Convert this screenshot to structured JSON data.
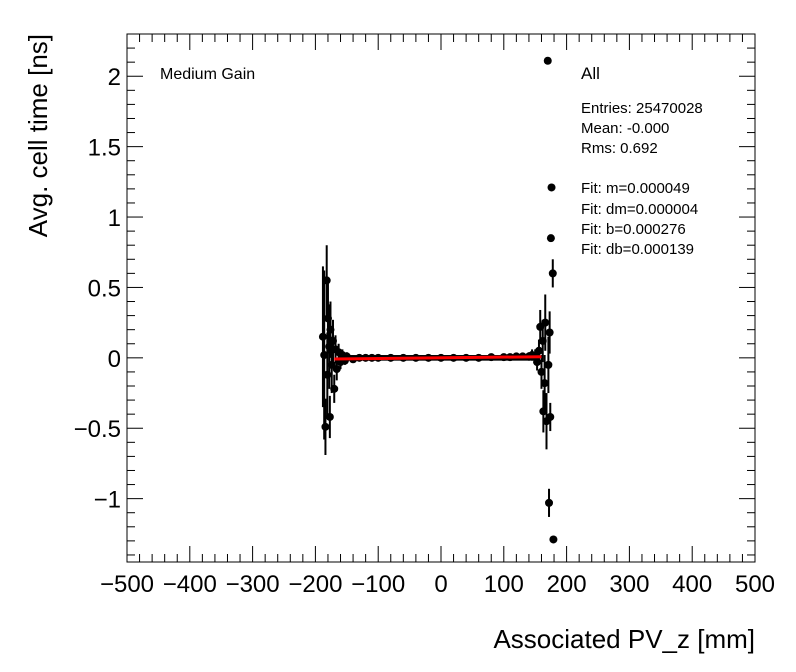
{
  "chart_data": {
    "type": "scatter",
    "xlabel": "Associated PV_z [mm]",
    "ylabel": "Avg. cell time [ns]",
    "xlim": [
      -500,
      500
    ],
    "ylim": [
      -1.45,
      2.3
    ],
    "x_ticks": [
      -500,
      -400,
      -300,
      -200,
      -100,
      0,
      100,
      200,
      300,
      400,
      500
    ],
    "y_ticks": [
      -1,
      -0.5,
      0,
      0.5,
      1,
      1.5,
      2
    ],
    "x_tick_labels": [
      "−500",
      "−400",
      "−300",
      "−200",
      "−100",
      "0",
      "100",
      "200",
      "300",
      "400",
      "500"
    ],
    "y_tick_labels": [
      "−1",
      "−0.5",
      "0",
      "0.5",
      "1",
      "1.5",
      "2"
    ],
    "annotation": "Medium Gain",
    "stats": {
      "title": "All",
      "lines": [
        "Entries: 25470028",
        "Mean: -0.000",
        "Rms: 0.692"
      ],
      "fit_lines": [
        "Fit: m=0.000049",
        "Fit: dm=0.000004",
        "Fit: b=0.000276",
        "Fit: db=0.000139"
      ]
    },
    "fit": {
      "m": 4.9e-05,
      "b": 0.000276,
      "x_range": [
        -170,
        160
      ],
      "color": "#ff0000"
    },
    "points": [
      {
        "x": -188,
        "y": 0.15,
        "err": 0.5
      },
      {
        "x": -186,
        "y": 0.02,
        "err": 0.6
      },
      {
        "x": -184,
        "y": -0.49,
        "err": 0.2
      },
      {
        "x": -182,
        "y": 0.55,
        "err": 0.25
      },
      {
        "x": -181,
        "y": -0.12,
        "err": 0.3
      },
      {
        "x": -180,
        "y": 0.28,
        "err": 0.25
      },
      {
        "x": -178,
        "y": 0.08,
        "err": 0.3
      },
      {
        "x": -177,
        "y": -0.42,
        "err": 0.15
      },
      {
        "x": -176,
        "y": 0.2,
        "err": 0.2
      },
      {
        "x": -174,
        "y": -0.05,
        "err": 0.2
      },
      {
        "x": -172,
        "y": 0.12,
        "err": 0.15
      },
      {
        "x": -170,
        "y": -0.22,
        "err": 0.1
      },
      {
        "x": -168,
        "y": 0.06,
        "err": 0.1
      },
      {
        "x": -166,
        "y": -0.08,
        "err": 0.08
      },
      {
        "x": -163,
        "y": 0.04,
        "err": 0.06
      },
      {
        "x": -160,
        "y": -0.03,
        "err": 0.05
      },
      {
        "x": -157,
        "y": 0.02,
        "err": 0.04
      },
      {
        "x": -153,
        "y": -0.02,
        "err": 0.03
      },
      {
        "x": -150,
        "y": 0.01,
        "err": 0.03
      },
      {
        "x": -140,
        "y": -0.01,
        "err": 0.02
      },
      {
        "x": -130,
        "y": 0.0,
        "err": 0.02
      },
      {
        "x": -120,
        "y": 0.0,
        "err": 0.015
      },
      {
        "x": -110,
        "y": 0.0,
        "err": 0.01
      },
      {
        "x": -100,
        "y": 0.0,
        "err": 0.01
      },
      {
        "x": -80,
        "y": 0.0,
        "err": 0.01
      },
      {
        "x": -60,
        "y": 0.0,
        "err": 0.01
      },
      {
        "x": -40,
        "y": 0.0,
        "err": 0.01
      },
      {
        "x": -20,
        "y": 0.0,
        "err": 0.01
      },
      {
        "x": 0,
        "y": 0.0,
        "err": 0.01
      },
      {
        "x": 20,
        "y": 0.0,
        "err": 0.01
      },
      {
        "x": 40,
        "y": 0.0,
        "err": 0.01
      },
      {
        "x": 60,
        "y": 0.0,
        "err": 0.01
      },
      {
        "x": 80,
        "y": 0.005,
        "err": 0.01
      },
      {
        "x": 100,
        "y": 0.005,
        "err": 0.01
      },
      {
        "x": 110,
        "y": 0.005,
        "err": 0.015
      },
      {
        "x": 120,
        "y": 0.01,
        "err": 0.02
      },
      {
        "x": 130,
        "y": 0.01,
        "err": 0.02
      },
      {
        "x": 140,
        "y": 0.01,
        "err": 0.03
      },
      {
        "x": 145,
        "y": 0.02,
        "err": 0.04
      },
      {
        "x": 150,
        "y": 0.01,
        "err": 0.05
      },
      {
        "x": 153,
        "y": -0.03,
        "err": 0.06
      },
      {
        "x": 156,
        "y": 0.05,
        "err": 0.08
      },
      {
        "x": 158,
        "y": 0.22,
        "err": 0.12
      },
      {
        "x": 160,
        "y": -0.1,
        "err": 0.12
      },
      {
        "x": 162,
        "y": 0.12,
        "err": 0.15
      },
      {
        "x": 163,
        "y": -0.38,
        "err": 0.15
      },
      {
        "x": 165,
        "y": -0.18,
        "err": 0.2
      },
      {
        "x": 166,
        "y": 0.25,
        "err": 0.2
      },
      {
        "x": 168,
        "y": -0.45,
        "err": 0.2
      },
      {
        "x": 170,
        "y": 2.11,
        "err": 0.0
      },
      {
        "x": 171,
        "y": -0.05,
        "err": 0.2
      },
      {
        "x": 172,
        "y": -1.03,
        "err": 0.1
      },
      {
        "x": 173,
        "y": 0.18,
        "err": 0.15
      },
      {
        "x": 174,
        "y": -0.42,
        "err": 0.1
      },
      {
        "x": 175,
        "y": 0.85,
        "err": 0.0
      },
      {
        "x": 176,
        "y": 1.21,
        "err": 0.0
      },
      {
        "x": 178,
        "y": 0.6,
        "err": 0.1
      },
      {
        "x": 179,
        "y": -1.29,
        "err": 0.0
      }
    ]
  }
}
